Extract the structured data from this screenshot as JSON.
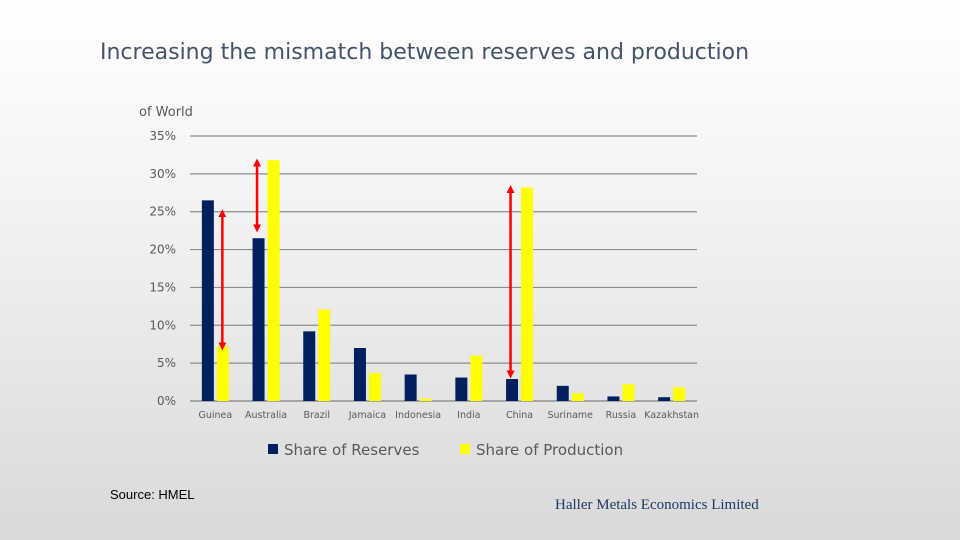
{
  "slide": {
    "title": "Increasing the mismatch between reserves and production",
    "source": "Source: HMEL",
    "company": "Haller Metals Economics Limited"
  },
  "chart_data": {
    "type": "bar",
    "ylabel": "of World",
    "ylim": [
      0,
      35
    ],
    "yticks": [
      0,
      5,
      10,
      15,
      20,
      25,
      30,
      35
    ],
    "ytick_labels": [
      "0%",
      "5%",
      "10%",
      "15%",
      "20%",
      "25%",
      "30%",
      "35%"
    ],
    "grid": true,
    "legend_position": "bottom",
    "categories": [
      "Guinea",
      "Australia",
      "Brazil",
      "Jamaica",
      "Indonesia",
      "India",
      "China",
      "Suriname",
      "Russia",
      "Kazakhstan"
    ],
    "series": [
      {
        "name": "Share of Reserves",
        "color": "#002060",
        "values": [
          26.5,
          21.5,
          9.2,
          7.0,
          3.5,
          3.1,
          2.9,
          2.0,
          0.6,
          0.5
        ]
      },
      {
        "name": "Share of Production",
        "color": "#ffff00",
        "values": [
          7.2,
          31.8,
          12.1,
          3.7,
          0.3,
          6.0,
          28.2,
          1.0,
          2.2,
          1.8
        ]
      }
    ],
    "annotations": [
      {
        "type": "double-arrow",
        "color": "#ff0000",
        "category": "Guinea",
        "from": 7.2,
        "to": 24.8
      },
      {
        "type": "double-arrow",
        "color": "#ff0000",
        "category": "Australia",
        "from": 22.8,
        "to": 31.5
      },
      {
        "type": "double-arrow",
        "color": "#ff0000",
        "category": "China",
        "from": 3.5,
        "to": 28.0
      }
    ]
  }
}
